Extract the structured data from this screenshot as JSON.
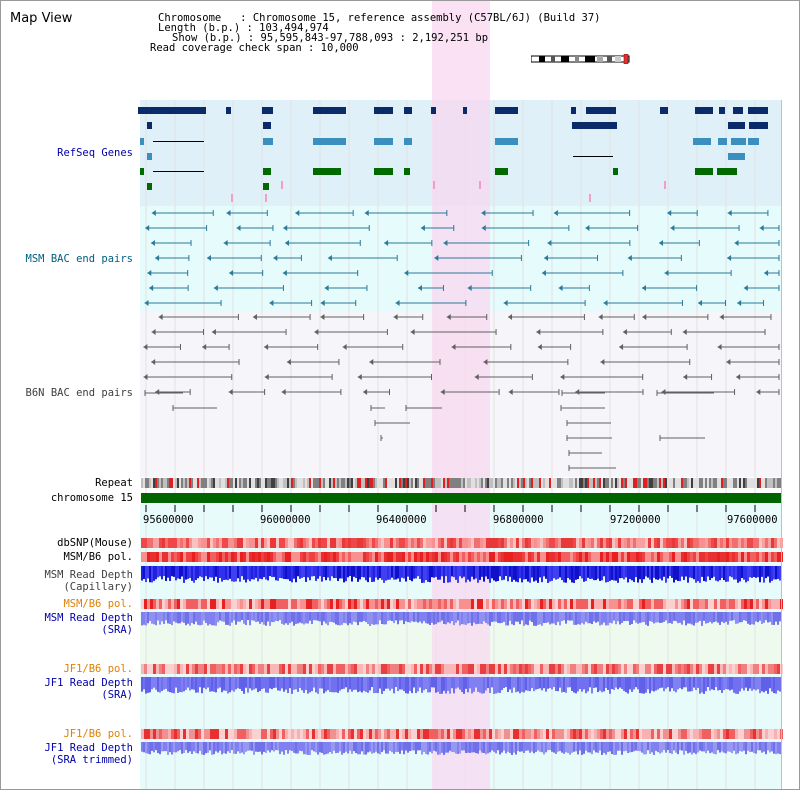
{
  "header": {
    "title": "Map View",
    "chromosome_line": "Chromosome   : Chromosome 15, reference assembly (C57BL/6J) (Build 37)",
    "length_line": "Length (b.p.) : 103,494,974",
    "show_line": "Show (b.p.) : 95,595,843-97,788,093 : 2,192,251 bp",
    "span_line": "Read coverage check span : 10,000"
  },
  "tracks": {
    "refseq": {
      "label": "RefSeq Genes",
      "color": "#0000aa"
    },
    "msm_bac": {
      "label": "MSM BAC end pairs",
      "color": "#006080"
    },
    "b6n_bac": {
      "label": "B6N BAC end pairs",
      "color": "#404040"
    },
    "repeat": {
      "label": "Repeat",
      "color": "#000000"
    },
    "chrom": {
      "label": "chromosome 15",
      "color": "#000000"
    },
    "dbsnp": {
      "label": "dbSNP(Mouse)",
      "color": "#000000"
    },
    "msm_b6_pol_1": {
      "label": "MSM/B6 pol.",
      "color": "#000000"
    },
    "msm_depth_cap_1": {
      "label": "MSM Read Depth",
      "color": "#404040"
    },
    "msm_depth_cap_2": {
      "label": "(Capillary)",
      "color": "#404040"
    },
    "msm_b6_pol_2": {
      "label": "MSM/B6 pol.",
      "color": "#e08000"
    },
    "msm_depth_sra_1": {
      "label": "MSM Read Depth",
      "color": "#0000aa"
    },
    "msm_depth_sra_2": {
      "label": "(SRA)",
      "color": "#0000aa"
    },
    "jf1_b6_pol_1": {
      "label": "JF1/B6 pol.",
      "color": "#e08000"
    },
    "jf1_depth_sra_1": {
      "label": "JF1 Read Depth",
      "color": "#0000aa"
    },
    "jf1_depth_sra_2": {
      "label": "(SRA)",
      "color": "#0000aa"
    },
    "jf1_b6_pol_3": {
      "label": "JF1/B6 pol.",
      "color": "#e08000"
    },
    "jf1_depth_trim_1": {
      "label": "JF1 Read Depth",
      "color": "#0000aa"
    },
    "jf1_depth_trim_2": {
      "label": "(SRA trimmed)",
      "color": "#0000aa"
    }
  },
  "axis": {
    "ticks": [
      "95600000",
      "96000000",
      "96400000",
      "96800000",
      "97200000",
      "97600000"
    ]
  },
  "colors": {
    "refseq_bg": "#dff0f9",
    "msm_bac_bg": "#e6fbfb",
    "b6n_bac_bg": "#f6f6fa",
    "highlight": "#f8d8f0",
    "gene_dark": "#0a2a6a",
    "gene_mid": "#3a8fbf",
    "gene_green": "#006a00",
    "chrom_green": "#006400"
  }
}
